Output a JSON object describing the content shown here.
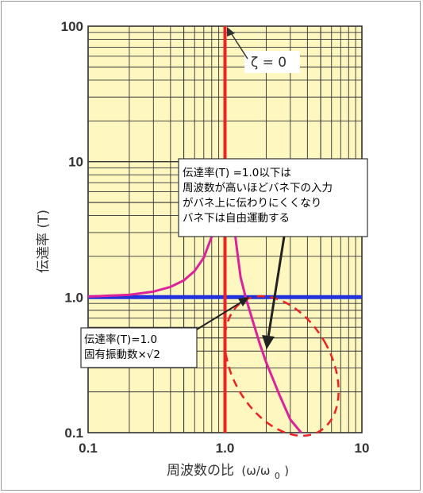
{
  "chart_data": {
    "type": "line",
    "xscale": "log",
    "yscale": "log",
    "xlim": [
      0.1,
      10
    ],
    "ylim": [
      0.1,
      100
    ],
    "xticks": [
      "0.1",
      "1.0",
      "10"
    ],
    "yticks": [
      "0.1",
      "1.0",
      "10",
      "100"
    ],
    "ylabel": "伝達率 (T)",
    "xlabel": "周波数の比 (ω/ω0)",
    "xlabel_main": "周波数の比",
    "xlabel_unit": "(ω/ω",
    "xlabel_sub": "0",
    "xlabel_close": ")",
    "grid": true,
    "series": [
      {
        "name": "ζ = 0",
        "color": "#ee2222",
        "x": [
          1.0,
          1.0
        ],
        "y": [
          0.1,
          100
        ]
      },
      {
        "color": "#dd2299",
        "x": [
          0.1,
          0.2,
          0.3,
          0.4,
          0.5,
          0.6,
          0.7,
          0.8,
          0.9,
          0.95,
          1.05,
          1.1,
          1.2,
          1.3,
          1.414,
          1.6,
          1.8,
          2.0,
          2.5,
          3.0,
          3.6
        ],
        "y": [
          1.01,
          1.04,
          1.1,
          1.19,
          1.33,
          1.56,
          1.96,
          2.8,
          5.5,
          10,
          10,
          6,
          2.6,
          1.4,
          1.0,
          0.66,
          0.45,
          0.33,
          0.19,
          0.125,
          0.1
        ]
      },
      {
        "color": "#2233dd",
        "x": [
          0.1,
          10
        ],
        "y": [
          1.0,
          1.0
        ]
      }
    ]
  },
  "annotations": {
    "zeta_label": "ζ = 0",
    "upper_box": [
      "伝達率(T) =1.0以下は",
      "周波数が高いほどバネ下の入力",
      "がバネ上に伝わりにくくなり",
      "バネ下は自由運動する"
    ],
    "lower_box": [
      "伝達率(T)=1.0",
      "固有振動数×√2"
    ]
  },
  "colors": {
    "plot_background": "#fff7c0",
    "grid": "#333333",
    "ellipse": "#ee2222"
  }
}
